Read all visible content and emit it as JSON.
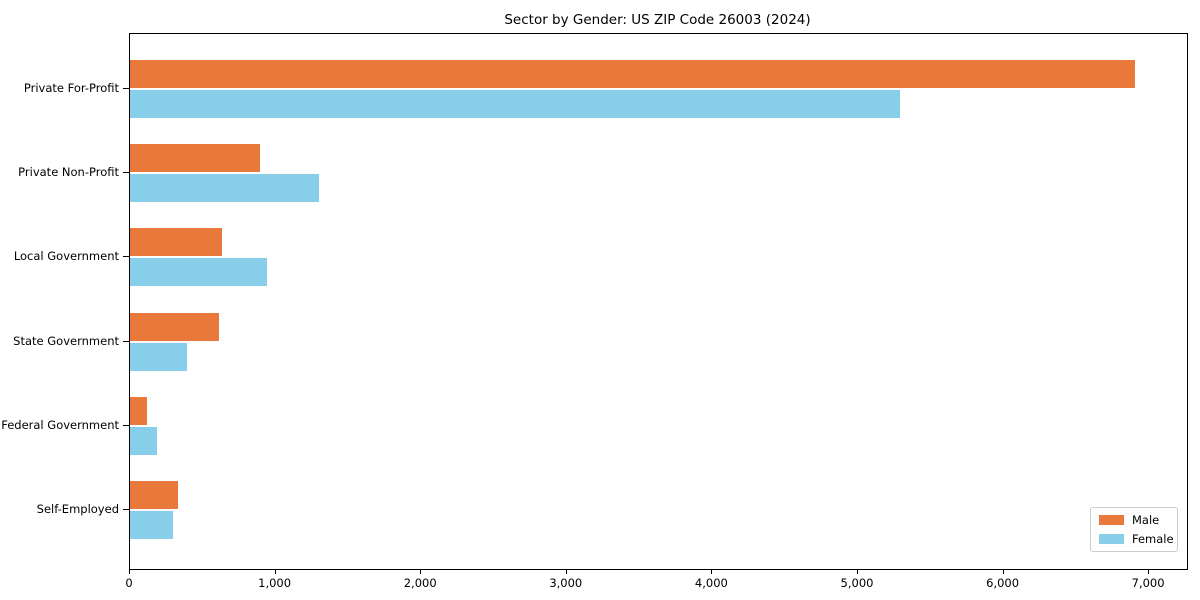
{
  "chart_data": {
    "type": "bar",
    "orientation": "horizontal",
    "title": "Sector by Gender: US ZIP Code 26003 (2024)",
    "categories": [
      "Private For-Profit",
      "Private Non-Profit",
      "Local Government",
      "State Government",
      "Federal Government",
      "Self-Employed"
    ],
    "series": [
      {
        "name": "Male",
        "color": "#E8793B",
        "values": [
          6900,
          890,
          630,
          610,
          115,
          330
        ]
      },
      {
        "name": "Female",
        "color": "#87CEEB",
        "values": [
          5290,
          1300,
          940,
          390,
          185,
          295
        ]
      }
    ],
    "xlabel": "",
    "ylabel": "",
    "xlim": [
      0,
      7260
    ],
    "x_ticks": [
      0,
      1000,
      2000,
      3000,
      4000,
      5000,
      6000,
      7000
    ],
    "x_tick_labels": [
      "0",
      "1,000",
      "2,000",
      "3,000",
      "4,000",
      "5,000",
      "6,000",
      "7,000"
    ],
    "grid": false,
    "legend_position": "lower right"
  }
}
